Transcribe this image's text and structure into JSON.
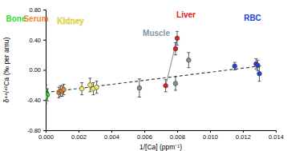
{
  "chart_data": {
    "type": "scatter",
    "x_label": "1/[Ca] (ppm⁻¹)",
    "y_label": "δ⁴⁴/⁴²Ca (‰ per amu)",
    "xlim": [
      0,
      0.014
    ],
    "ylim": [
      -0.8,
      0.8
    ],
    "xticks": [
      {
        "value": 0,
        "label": "0.000"
      },
      {
        "value": 0.002,
        "label": "0.002"
      },
      {
        "value": 0.004,
        "label": "0.004"
      },
      {
        "value": 0.006,
        "label": "0.006"
      },
      {
        "value": 0.008,
        "label": "0.008"
      },
      {
        "value": 0.01,
        "label": "0.010"
      },
      {
        "value": 0.012,
        "label": "0.012"
      },
      {
        "value": 0.014,
        "label": "0.014"
      }
    ],
    "yticks": [
      {
        "value": -0.8,
        "label": "-0.80"
      },
      {
        "value": -0.4,
        "label": "-0.40"
      },
      {
        "value": 0,
        "label": "0.00"
      },
      {
        "value": 0.4,
        "label": "0.40"
      },
      {
        "value": 0.8,
        "label": "0.80"
      }
    ],
    "grid": false,
    "series": [
      {
        "type": "line",
        "line_style": "dashed",
        "color": "#444444",
        "x": [
          0,
          0.013
        ],
        "values": [
          -0.3,
          0.05
        ]
      },
      {
        "type": "line",
        "line_style": "solid",
        "color": "#8aa0b0",
        "x": [
          0.0073,
          0.008
        ],
        "values": [
          -0.21,
          0.42
        ]
      },
      {
        "name": "Bone",
        "type": "scatter",
        "marker": "circle",
        "color": "#33dd33",
        "x": [
          0.0,
          0.0001,
          0.0
        ],
        "values": [
          -0.28,
          -0.33,
          -0.36
        ],
        "errors": [
          0.08,
          0.08,
          0.08
        ]
      },
      {
        "name": "Serum",
        "type": "scatter",
        "marker": "circle",
        "color": "#f0882c",
        "x": [
          0.0008,
          0.0009,
          0.001,
          0.0011
        ],
        "values": [
          -0.3,
          -0.28,
          -0.28,
          -0.26
        ],
        "errors": [
          0.07,
          0.07,
          0.07,
          0.07
        ]
      },
      {
        "name": "Kidney",
        "type": "scatter",
        "marker": "circle",
        "color": "#f2ee66",
        "x": [
          0.0022,
          0.0027,
          0.0029,
          0.0031
        ],
        "values": [
          -0.25,
          -0.2,
          -0.25,
          -0.23
        ],
        "errors": [
          0.08,
          0.09,
          0.08,
          0.08
        ]
      },
      {
        "name": "Muscle",
        "type": "scatter",
        "marker": "circle",
        "color": "#7f95a5",
        "x": [
          0.0057,
          0.0079,
          0.0087
        ],
        "values": [
          -0.24,
          -0.18,
          0.13
        ],
        "errors": [
          0.12,
          0.09,
          0.1
        ]
      },
      {
        "name": "Liver",
        "type": "scatter",
        "marker": "circle",
        "color": "#e02020",
        "x": [
          0.0073,
          0.0079,
          0.008
        ],
        "values": [
          -0.21,
          0.28,
          0.42
        ],
        "errors": [
          0.08,
          0.08,
          0.09
        ]
      },
      {
        "name": "RBC",
        "type": "scatter",
        "marker": "circle",
        "color": "#2244dd",
        "x": [
          0.0115,
          0.0128,
          0.0129,
          0.013
        ],
        "values": [
          0.05,
          0.08,
          0.06,
          -0.05
        ],
        "errors": [
          0.05,
          0.07,
          0.07,
          0.1
        ]
      }
    ]
  }
}
